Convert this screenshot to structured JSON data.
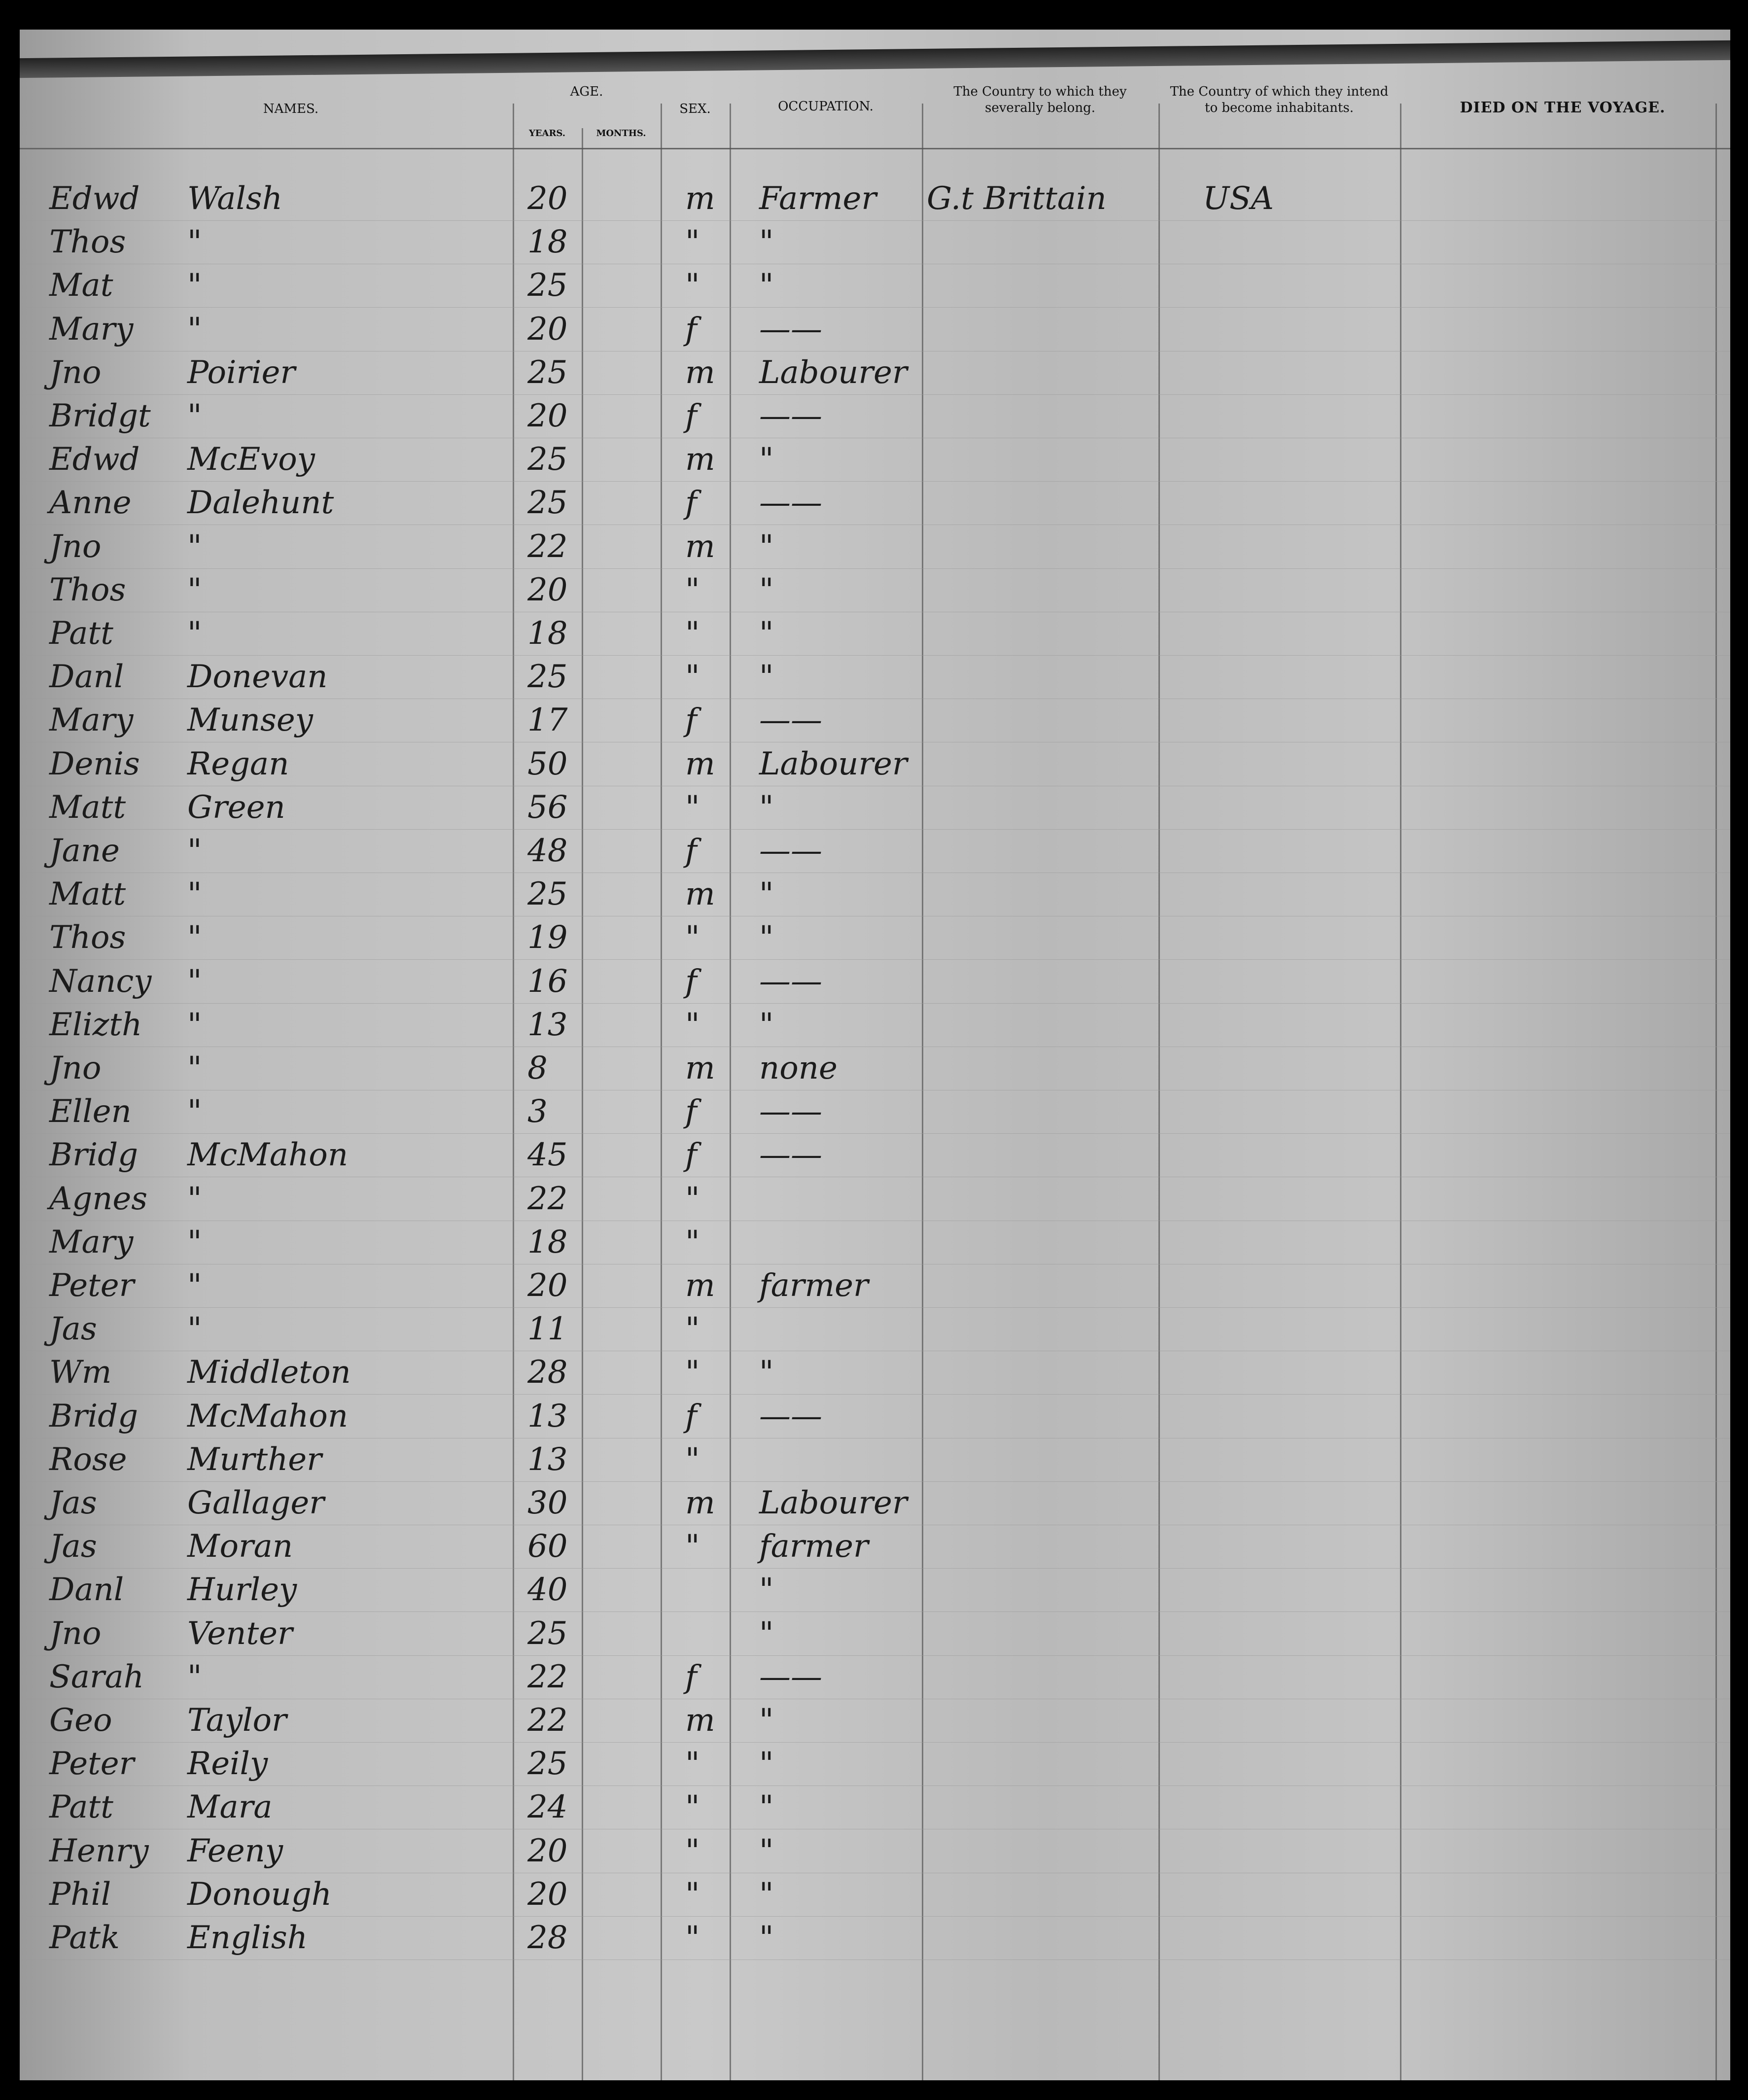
{
  "header": {
    "names": "NAMES.",
    "age": "AGE.",
    "years": "YEARS.",
    "months": "MONTHS.",
    "sex": "SEX.",
    "occupation": "OCCUPATION.",
    "country_belong": "The Country to which they severally belong.",
    "country_inhabit": "The Country of which they intend to become inhabitants.",
    "died": "DIED ON THE VOYAGE."
  },
  "rows": [
    {
      "first": "Edwd",
      "last": "Walsh",
      "years": "20",
      "sex": "m",
      "occupation": "Farmer",
      "country": "G.t Brittain",
      "destination": "USA"
    },
    {
      "first": "Thos",
      "last": "\"",
      "years": "18",
      "sex": "\"",
      "occupation": "\""
    },
    {
      "first": "Mat",
      "last": "\"",
      "years": "25",
      "sex": "\"",
      "occupation": "\""
    },
    {
      "first": "Mary",
      "last": "\"",
      "years": "20",
      "sex": "f",
      "occupation": "——"
    },
    {
      "first": "Jno",
      "last": "Poirier",
      "years": "25",
      "sex": "m",
      "occupation": "Labourer"
    },
    {
      "first": "Bridgt",
      "last": "\"",
      "years": "20",
      "sex": "f",
      "occupation": "——"
    },
    {
      "first": "Edwd",
      "last": "McEvoy",
      "years": "25",
      "sex": "m",
      "occupation": "\""
    },
    {
      "first": "Anne",
      "last": "Dalehunt",
      "years": "25",
      "sex": "f",
      "occupation": "——"
    },
    {
      "first": "Jno",
      "last": "\"",
      "years": "22",
      "sex": "m",
      "occupation": "\""
    },
    {
      "first": "Thos",
      "last": "\"",
      "years": "20",
      "sex": "\"",
      "occupation": "\""
    },
    {
      "first": "Patt",
      "last": "\"",
      "years": "18",
      "sex": "\"",
      "occupation": "\""
    },
    {
      "first": "Danl",
      "last": "Donevan",
      "years": "25",
      "sex": "\"",
      "occupation": "\""
    },
    {
      "first": "Mary",
      "last": "Munsey",
      "years": "17",
      "sex": "f",
      "occupation": "——"
    },
    {
      "first": "Denis",
      "last": "Regan",
      "years": "50",
      "sex": "m",
      "occupation": "Labourer"
    },
    {
      "first": "Matt",
      "last": "Green",
      "years": "56",
      "sex": "\"",
      "occupation": "\""
    },
    {
      "first": "Jane",
      "last": "\"",
      "years": "48",
      "sex": "f",
      "occupation": "——"
    },
    {
      "first": "Matt",
      "last": "\"",
      "years": "25",
      "sex": "m",
      "occupation": "\""
    },
    {
      "first": "Thos",
      "last": "\"",
      "years": "19",
      "sex": "\"",
      "occupation": "\""
    },
    {
      "first": "Nancy",
      "last": "\"",
      "years": "16",
      "sex": "f",
      "occupation": "——"
    },
    {
      "first": "Elizth",
      "last": "\"",
      "years": "13",
      "sex": "\"",
      "occupation": "\""
    },
    {
      "first": "Jno",
      "last": "\"",
      "years": "8",
      "sex": "m",
      "occupation": "none"
    },
    {
      "first": "Ellen",
      "last": "\"",
      "years": "3",
      "sex": "f",
      "occupation": "——"
    },
    {
      "first": "Bridg",
      "last": "McMahon",
      "years": "45",
      "sex": "f",
      "occupation": "——"
    },
    {
      "first": "Agnes",
      "last": "\"",
      "years": "22",
      "sex": "\"",
      "occupation": ""
    },
    {
      "first": "Mary",
      "last": "\"",
      "years": "18",
      "sex": "\"",
      "occupation": ""
    },
    {
      "first": "Peter",
      "last": "\"",
      "years": "20",
      "sex": "m",
      "occupation": "farmer"
    },
    {
      "first": "Jas",
      "last": "\"",
      "years": "11",
      "sex": "\"",
      "occupation": ""
    },
    {
      "first": "Wm",
      "last": "Middleton",
      "years": "28",
      "sex": "\"",
      "occupation": "\""
    },
    {
      "first": "Bridg",
      "last": "McMahon",
      "years": "13",
      "sex": "f",
      "occupation": "——"
    },
    {
      "first": "Rose",
      "last": "Murther",
      "years": "13",
      "sex": "\"",
      "occupation": ""
    },
    {
      "first": "Jas",
      "last": "Gallager",
      "years": "30",
      "sex": "m",
      "occupation": "Labourer"
    },
    {
      "first": "Jas",
      "last": "Moran",
      "years": "60",
      "sex": "\"",
      "occupation": "farmer"
    },
    {
      "first": "Danl",
      "last": "Hurley",
      "years": "40",
      "sex": "",
      "occupation": "\""
    },
    {
      "first": "Jno",
      "last": "Venter",
      "years": "25",
      "sex": "",
      "occupation": "\""
    },
    {
      "first": "Sarah",
      "last": "\"",
      "years": "22",
      "sex": "f",
      "occupation": "——"
    },
    {
      "first": "Geo",
      "last": "Taylor",
      "years": "22",
      "sex": "m",
      "occupation": "\""
    },
    {
      "first": "Peter",
      "last": "Reily",
      "years": "25",
      "sex": "\"",
      "occupation": "\""
    },
    {
      "first": "Patt",
      "last": "Mara",
      "years": "24",
      "sex": "\"",
      "occupation": "\""
    },
    {
      "first": "Henry",
      "last": "Feeny",
      "years": "20",
      "sex": "\"",
      "occupation": "\""
    },
    {
      "first": "Phil",
      "last": "Donough",
      "years": "20",
      "sex": "\"",
      "occupation": "\""
    },
    {
      "first": "Patk",
      "last": "English",
      "years": "28",
      "sex": "\"",
      "occupation": "\""
    }
  ]
}
